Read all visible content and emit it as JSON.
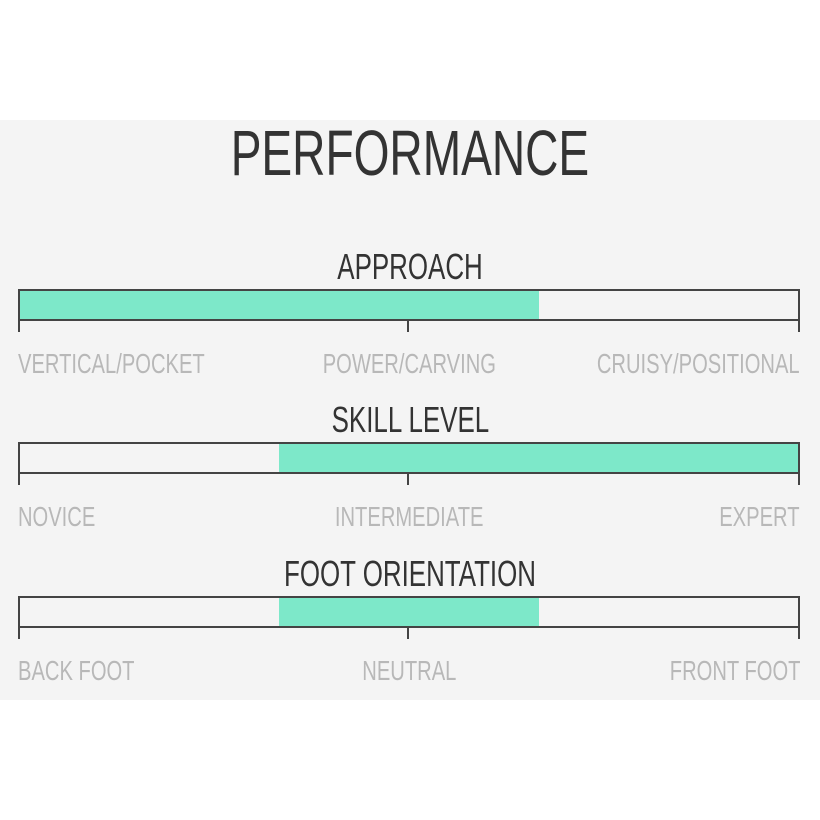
{
  "title": "PERFORMANCE",
  "fill_color": "#7de8c9",
  "scales": [
    {
      "title": "APPROACH",
      "labels": [
        "VERTICAL/POCKET",
        "POWER/CARVING",
        "CRUISY/POSITIONAL"
      ],
      "range": [
        0,
        0.667
      ]
    },
    {
      "title": "SKILL LEVEL",
      "labels": [
        "NOVICE",
        "INTERMEDIATE",
        "EXPERT"
      ],
      "range": [
        0.333,
        1
      ]
    },
    {
      "title": "FOOT ORIENTATION",
      "labels": [
        "BACK FOOT",
        "NEUTRAL",
        "FRONT FOOT"
      ],
      "range": [
        0.333,
        0.667
      ]
    }
  ]
}
